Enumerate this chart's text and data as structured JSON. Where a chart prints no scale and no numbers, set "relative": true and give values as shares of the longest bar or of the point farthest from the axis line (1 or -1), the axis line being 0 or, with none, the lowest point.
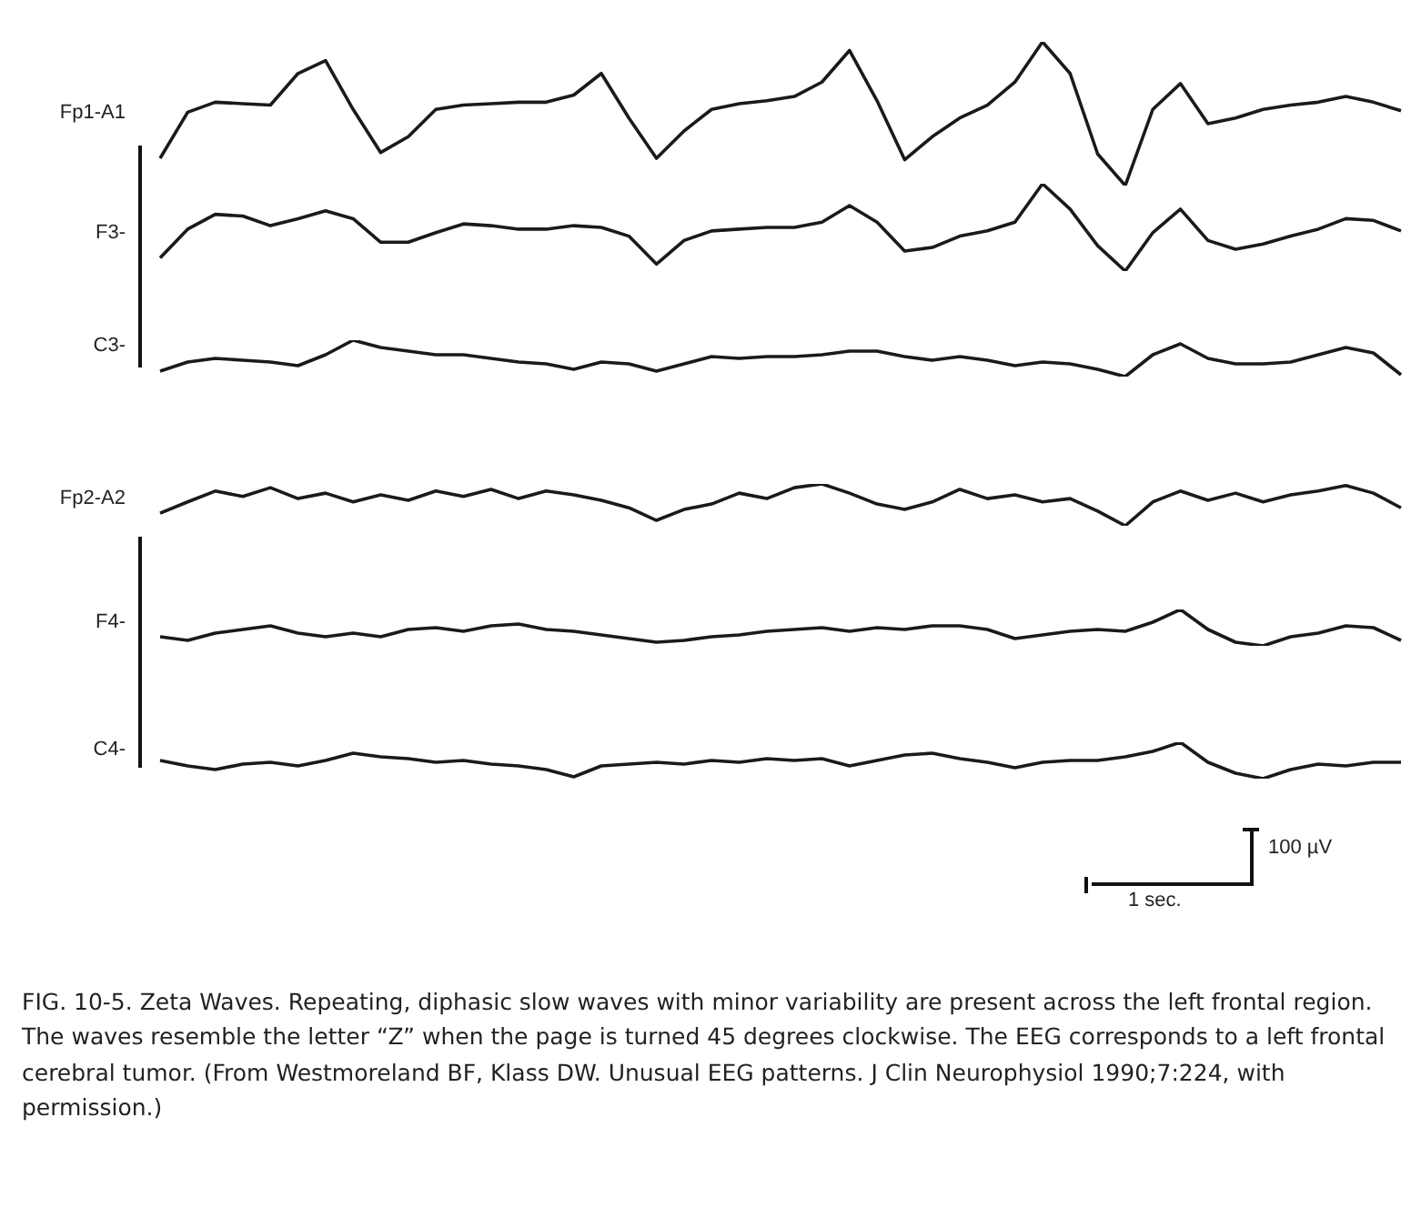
{
  "chart_data": [
    {
      "type": "line",
      "ylabel": "Fp1-A1",
      "relative": true,
      "categories": [
        null,
        null,
        null,
        null,
        null,
        null,
        null,
        null,
        null,
        null,
        null,
        null,
        null,
        null,
        null,
        null,
        null,
        null,
        null,
        null,
        null,
        null,
        null,
        null,
        null,
        null,
        null,
        null,
        null,
        null,
        null,
        null,
        null,
        null,
        null,
        null,
        null,
        null,
        null,
        null,
        null,
        null,
        null,
        null,
        null,
        null
      ],
      "series": [
        {
          "color": "#1a1a1a",
          "values": [
            0.19,
            0.51,
            0.58,
            0.57,
            0.56,
            0.78,
            0.87,
            0.53,
            0.23,
            0.34,
            0.53,
            0.56,
            0.57,
            0.58,
            0.58,
            0.63,
            0.78,
            0.47,
            0.19,
            0.38,
            0.53,
            0.57,
            0.59,
            0.62,
            0.72,
            0.94,
            0.59,
            0.18,
            0.34,
            0.47,
            0.56,
            0.72,
            1,
            0.78,
            0.22,
            0,
            0.53,
            0.71,
            0.43,
            0.47,
            0.53,
            0.56,
            0.58,
            0.62,
            0.58,
            0.52
          ]
        }
      ]
    },
    {
      "type": "line",
      "ylabel": "F3-",
      "relative": true,
      "categories": [
        null,
        null,
        null,
        null,
        null,
        null,
        null,
        null,
        null,
        null,
        null,
        null,
        null,
        null,
        null,
        null,
        null,
        null,
        null,
        null,
        null,
        null,
        null,
        null,
        null,
        null,
        null,
        null,
        null,
        null,
        null,
        null,
        null,
        null,
        null,
        null,
        null,
        null,
        null,
        null,
        null,
        null,
        null,
        null,
        null,
        null
      ],
      "series": [
        {
          "color": "#1a1a1a",
          "values": [
            0.15,
            0.48,
            0.65,
            0.63,
            0.52,
            0.6,
            0.69,
            0.6,
            0.33,
            0.33,
            0.44,
            0.54,
            0.52,
            0.48,
            0.48,
            0.52,
            0.5,
            0.4,
            0.08,
            0.35,
            0.46,
            0.48,
            0.5,
            0.5,
            0.56,
            0.75,
            0.56,
            0.23,
            0.27,
            0.4,
            0.46,
            0.56,
            1,
            0.71,
            0.29,
            0,
            0.44,
            0.71,
            0.35,
            0.25,
            0.31,
            0.4,
            0.48,
            0.6,
            0.58,
            0.46
          ]
        }
      ]
    },
    {
      "type": "line",
      "ylabel": "C3-",
      "relative": true,
      "categories": [
        null,
        null,
        null,
        null,
        null,
        null,
        null,
        null,
        null,
        null,
        null,
        null,
        null,
        null,
        null,
        null,
        null,
        null,
        null,
        null,
        null,
        null,
        null,
        null,
        null,
        null,
        null,
        null,
        null,
        null,
        null,
        null,
        null,
        null,
        null,
        null,
        null,
        null,
        null,
        null,
        null,
        null,
        null,
        null,
        null,
        null
      ],
      "series": [
        {
          "color": "#1a1a1a",
          "values": [
            0.15,
            0.4,
            0.5,
            0.45,
            0.4,
            0.3,
            0.6,
            1,
            0.8,
            0.7,
            0.6,
            0.6,
            0.5,
            0.4,
            0.35,
            0.2,
            0.4,
            0.35,
            0.15,
            0.35,
            0.55,
            0.5,
            0.55,
            0.55,
            0.6,
            0.7,
            0.7,
            0.55,
            0.45,
            0.55,
            0.45,
            0.3,
            0.4,
            0.35,
            0.2,
            0,
            0.6,
            0.9,
            0.5,
            0.35,
            0.35,
            0.4,
            0.6,
            0.8,
            0.65,
            0.05
          ]
        }
      ]
    },
    {
      "type": "line",
      "ylabel": "Fp2-A2",
      "relative": true,
      "categories": [
        null,
        null,
        null,
        null,
        null,
        null,
        null,
        null,
        null,
        null,
        null,
        null,
        null,
        null,
        null,
        null,
        null,
        null,
        null,
        null,
        null,
        null,
        null,
        null,
        null,
        null,
        null,
        null,
        null,
        null,
        null,
        null,
        null,
        null,
        null,
        null,
        null,
        null,
        null,
        null,
        null,
        null,
        null,
        null,
        null,
        null
      ],
      "series": [
        {
          "color": "#1a1a1a",
          "values": [
            0.3,
            0.57,
            0.83,
            0.7,
            0.91,
            0.65,
            0.78,
            0.57,
            0.74,
            0.61,
            0.83,
            0.7,
            0.87,
            0.65,
            0.83,
            0.74,
            0.61,
            0.43,
            0.13,
            0.39,
            0.52,
            0.78,
            0.65,
            0.91,
            1,
            0.78,
            0.52,
            0.39,
            0.57,
            0.87,
            0.65,
            0.74,
            0.57,
            0.65,
            0.35,
            0,
            0.57,
            0.83,
            0.61,
            0.78,
            0.57,
            0.74,
            0.83,
            0.96,
            0.78,
            0.43
          ]
        }
      ]
    },
    {
      "type": "line",
      "ylabel": "F4-",
      "relative": true,
      "categories": [
        null,
        null,
        null,
        null,
        null,
        null,
        null,
        null,
        null,
        null,
        null,
        null,
        null,
        null,
        null,
        null,
        null,
        null,
        null,
        null,
        null,
        null,
        null,
        null,
        null,
        null,
        null,
        null,
        null,
        null,
        null,
        null,
        null,
        null,
        null,
        null,
        null,
        null,
        null,
        null,
        null,
        null,
        null,
        null,
        null,
        null
      ],
      "series": [
        {
          "color": "#1a1a1a",
          "values": [
            0.25,
            0.15,
            0.35,
            0.45,
            0.55,
            0.35,
            0.25,
            0.35,
            0.25,
            0.45,
            0.5,
            0.4,
            0.55,
            0.6,
            0.45,
            0.4,
            0.3,
            0.2,
            0.1,
            0.15,
            0.25,
            0.3,
            0.4,
            0.45,
            0.5,
            0.4,
            0.5,
            0.45,
            0.55,
            0.55,
            0.45,
            0.2,
            0.3,
            0.4,
            0.45,
            0.4,
            0.65,
            1,
            0.45,
            0.1,
            0,
            0.25,
            0.35,
            0.55,
            0.5,
            0.15
          ]
        }
      ]
    },
    {
      "type": "line",
      "ylabel": "C4-",
      "relative": true,
      "categories": [
        null,
        null,
        null,
        null,
        null,
        null,
        null,
        null,
        null,
        null,
        null,
        null,
        null,
        null,
        null,
        null,
        null,
        null,
        null,
        null,
        null,
        null,
        null,
        null,
        null,
        null,
        null,
        null,
        null,
        null,
        null,
        null,
        null,
        null,
        null,
        null,
        null,
        null,
        null,
        null,
        null,
        null,
        null,
        null,
        null,
        null
      ],
      "series": [
        {
          "color": "#1a1a1a",
          "values": [
            0.5,
            0.35,
            0.25,
            0.4,
            0.45,
            0.35,
            0.5,
            0.7,
            0.6,
            0.55,
            0.45,
            0.5,
            0.4,
            0.35,
            0.25,
            0.05,
            0.35,
            0.4,
            0.45,
            0.4,
            0.5,
            0.45,
            0.55,
            0.5,
            0.55,
            0.35,
            0.5,
            0.65,
            0.7,
            0.55,
            0.45,
            0.3,
            0.45,
            0.5,
            0.5,
            0.6,
            0.75,
            1,
            0.45,
            0.15,
            0,
            0.25,
            0.4,
            0.35,
            0.45,
            0.45
          ]
        }
      ],
      "annotations": [
        "100 µV",
        "1 sec.",
        "FIG. 10-5. Zeta Waves. Repeating, diphasic slow waves with minor variability are present across the left frontal region. The waves resemble the letter “Z” when the page is turned 45 degrees clockwise. The EEG corresponds to a left frontal cerebral tumor. (From Westmoreland BF, Klass DW. Unusual EEG patterns. J Clin Neurophysiol 1990;7:224, with permission.)"
      ]
    }
  ]
}
